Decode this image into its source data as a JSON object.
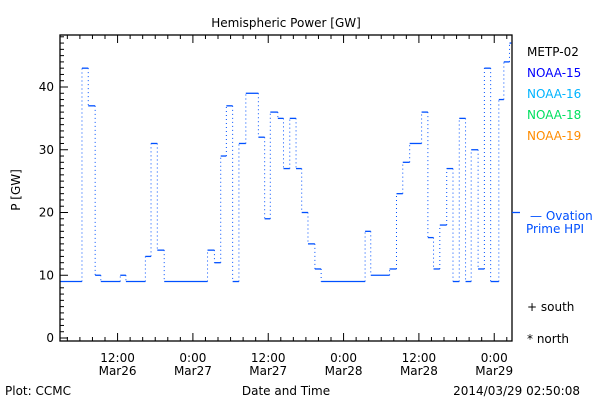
{
  "chart_data": {
    "type": "line",
    "title": "Hemispheric Power [GW]",
    "xlabel": "Date and Time",
    "ylabel": "P [GW]",
    "ylim": [
      0,
      48.4
    ],
    "x_unit": "hours since 2014-03-26 02:50",
    "xlim": [
      0,
      72
    ],
    "y_ticks": [
      0,
      10,
      20,
      30,
      40
    ],
    "y_tick_labels": [
      "0",
      "10",
      "20",
      "30",
      "40"
    ],
    "x_ticks": [
      {
        "hour": 9.17,
        "time": "12:00",
        "date": "Mar26"
      },
      {
        "hour": 21.17,
        "time": "0:00",
        "date": "Mar27"
      },
      {
        "hour": 33.17,
        "time": "12:00",
        "date": "Mar27"
      },
      {
        "hour": 45.17,
        "time": "0:00",
        "date": "Mar28"
      },
      {
        "hour": 57.17,
        "time": "12:00",
        "date": "Mar28"
      },
      {
        "hour": 69.17,
        "time": "0:00",
        "date": "Mar29"
      }
    ],
    "legend": [
      {
        "label": "METP-02",
        "color": "#000000"
      },
      {
        "label": "NOAA-15",
        "color": "#0000ff"
      },
      {
        "label": "NOAA-16",
        "color": "#00b4ff"
      },
      {
        "label": "NOAA-18",
        "color": "#00e060"
      },
      {
        "label": "NOAA-19",
        "color": "#ff8c00"
      }
    ],
    "ovation": {
      "label_line1": "— Ovation",
      "label_line2": "Prime HPI",
      "value": 20,
      "color": "#0050ff"
    },
    "markers": {
      "south": "+ south",
      "north": "* north"
    },
    "series": [
      {
        "name": "Ovation Prime HPI",
        "color": "#0050ff",
        "steps": [
          [
            0.1,
            3.5,
            9
          ],
          [
            3.5,
            4.5,
            43
          ],
          [
            4.5,
            5.6,
            37
          ],
          [
            5.6,
            6.5,
            10
          ],
          [
            6.5,
            9.6,
            9
          ],
          [
            9.6,
            10.5,
            10
          ],
          [
            10.5,
            13.6,
            9
          ],
          [
            13.6,
            14.5,
            13
          ],
          [
            14.5,
            15.5,
            31
          ],
          [
            15.5,
            16.6,
            14
          ],
          [
            16.6,
            23.5,
            9
          ],
          [
            23.5,
            24.6,
            14
          ],
          [
            24.6,
            25.6,
            12
          ],
          [
            25.6,
            26.5,
            29
          ],
          [
            26.5,
            27.5,
            37
          ],
          [
            27.5,
            28.5,
            9
          ],
          [
            28.5,
            29.6,
            31
          ],
          [
            29.6,
            31.6,
            39
          ],
          [
            31.6,
            32.6,
            32
          ],
          [
            32.6,
            33.5,
            19
          ],
          [
            33.5,
            34.7,
            36
          ],
          [
            34.7,
            35.6,
            35
          ],
          [
            35.6,
            36.6,
            27
          ],
          [
            36.6,
            37.6,
            35
          ],
          [
            37.6,
            38.5,
            27
          ],
          [
            38.5,
            39.5,
            20
          ],
          [
            39.5,
            40.6,
            15
          ],
          [
            40.6,
            41.6,
            11
          ],
          [
            41.6,
            48.6,
            9
          ],
          [
            48.6,
            49.5,
            17
          ],
          [
            49.5,
            52.5,
            10
          ],
          [
            52.5,
            53.6,
            11
          ],
          [
            53.6,
            54.6,
            23
          ],
          [
            54.6,
            55.7,
            28
          ],
          [
            55.7,
            57.6,
            31
          ],
          [
            57.6,
            58.6,
            36
          ],
          [
            58.6,
            59.5,
            16
          ],
          [
            59.5,
            60.5,
            11
          ],
          [
            60.5,
            61.6,
            18
          ],
          [
            61.6,
            62.6,
            27
          ],
          [
            62.6,
            63.6,
            9
          ],
          [
            63.6,
            64.6,
            35
          ],
          [
            64.6,
            65.5,
            9
          ],
          [
            65.5,
            66.6,
            30
          ],
          [
            66.6,
            67.6,
            11
          ],
          [
            67.6,
            68.6,
            43
          ],
          [
            68.6,
            69.9,
            9
          ],
          [
            69.9,
            70.7,
            38
          ],
          [
            70.7,
            71.6,
            44
          ],
          [
            71.6,
            71.9,
            47
          ]
        ]
      }
    ]
  },
  "footer": {
    "credit": "Plot: CCMC",
    "timestamp": "2014/03/29 02:50:08"
  }
}
